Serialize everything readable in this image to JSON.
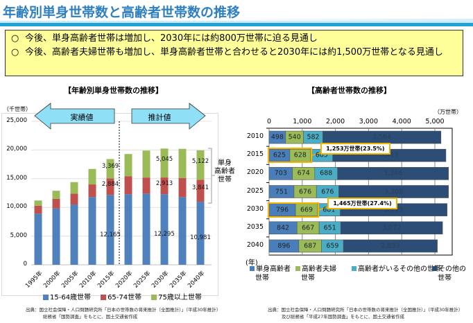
{
  "page": {
    "title": "年齢別単身世帯数と高齢者世帯数の推移",
    "summary": [
      {
        "bullet": "○",
        "text": "今後、単身高齢者世帯は増加し、2030年には約800万世帯に迫る見通し"
      },
      {
        "bullet": "○",
        "text": "今後、高齢者夫婦世帯も増加し、単身高齢者世帯と合わせると2030年には約1,500万世帯となる見通し"
      }
    ],
    "colors": {
      "title": "#2e7fbf",
      "summary_bg": "#ffff99",
      "arrow_fill": "#8fdff7",
      "highlight": "#f2b400"
    }
  },
  "chart_data": [
    {
      "type": "bar",
      "stacked": true,
      "title": "【年齢別単身世帯数の推移】",
      "ylabel": "（千世帯）",
      "xlabel": "",
      "ylim": [
        0,
        25000
      ],
      "yticks": [
        "0",
        "5,000",
        "10,000",
        "15,000",
        "20,000",
        "25,000"
      ],
      "ytick_values": [
        0,
        5000,
        10000,
        15000,
        20000,
        25000
      ],
      "grid": true,
      "categories": [
        "1995年",
        "2000年",
        "2005年",
        "2010年",
        "2015年",
        "2020年",
        "2025年",
        "2030年",
        "2035年",
        "2040年"
      ],
      "series": [
        {
          "name": "15-64歳世帯",
          "color": "#4f81bd",
          "values": [
            8900,
            9800,
            10500,
            11800,
            12165,
            12300,
            12400,
            12295,
            11800,
            10981
          ]
        },
        {
          "name": "65-74世帯",
          "color": "#c0504d",
          "values": [
            1400,
            1700,
            1900,
            2200,
            2884,
            3100,
            2800,
            2913,
            3300,
            3841
          ]
        },
        {
          "name": "75歳以上世帯",
          "color": "#9bbb59",
          "values": [
            900,
            1400,
            2000,
            2700,
            3369,
            3900,
            4700,
            5045,
            5100,
            5122
          ]
        }
      ],
      "data_labels": [
        {
          "category": "2015年",
          "series": 0,
          "text": "12,165"
        },
        {
          "category": "2015年",
          "series": 1,
          "text": "2,884"
        },
        {
          "category": "2015年",
          "series": 2,
          "text": "3,369"
        },
        {
          "category": "2030年",
          "series": 0,
          "text": "12,295"
        },
        {
          "category": "2030年",
          "series": 1,
          "text": "2,913"
        },
        {
          "category": "2030年",
          "series": 2,
          "text": "5,045"
        },
        {
          "category": "2040年",
          "series": 0,
          "text": "10,981"
        },
        {
          "category": "2040年",
          "series": 1,
          "text": "3,841"
        },
        {
          "category": "2040年",
          "series": 2,
          "text": "5,122"
        }
      ],
      "annotations": {
        "actual_label": "実績値",
        "projection_label": "推計値",
        "divider_between": [
          "2015年",
          "2020年"
        ],
        "bracket_label": [
          "単身",
          "高齢者",
          "世帯"
        ]
      },
      "legend": "bottom",
      "source": [
        "出典：国立社会保障・人口問題研究所「日本の世帯数の将来推計（全国推計）」（平成30年推計）",
        "総務省「国勢調査」をもとに、国土交通省作成"
      ]
    },
    {
      "type": "bar",
      "orientation": "horizontal",
      "stacked": true,
      "title": "【高齢者世帯数の推移】",
      "xlabel": "（万世帯）",
      "ylabel": "(年)",
      "xlim": [
        0,
        5500
      ],
      "xticks": [
        "0",
        "1,000",
        "2,000",
        "3,000",
        "4,000",
        "5,000"
      ],
      "xtick_values": [
        0,
        1000,
        2000,
        3000,
        4000,
        5000
      ],
      "grid": true,
      "categories": [
        "2010",
        "2015",
        "2020",
        "2025",
        "2030",
        "2035",
        "2040"
      ],
      "series": [
        {
          "name": "単身高齢者世帯",
          "color": "#4a7ebb",
          "values": [
            498,
            625,
            703,
            751,
            796,
            842,
            896
          ]
        },
        {
          "name": "高齢者夫婦世帯",
          "color": "#9bbb59",
          "values": [
            540,
            628,
            674,
            676,
            669,
            667,
            687
          ]
        },
        {
          "name": "高齢者がいるその他の世帯",
          "color": "#4bacc6",
          "values": [
            582,
            665,
            688,
            676,
            681,
            651,
            659
          ]
        },
        {
          "name": "その他の世帯",
          "color": "#2c4d75",
          "values": [
            3564,
            3415,
            3346,
            3308,
            3223,
            3072,
            2833
          ]
        }
      ],
      "value_labels": [
        [
          "498",
          "540",
          "582",
          "3,564"
        ],
        [
          "625",
          "628",
          "665",
          "3,415"
        ],
        [
          "703",
          "674",
          "688",
          "3,346"
        ],
        [
          "751",
          "676",
          "676",
          "3,308"
        ],
        [
          "796",
          "669",
          "681",
          "3,223"
        ],
        [
          "842",
          "667",
          "651",
          "3,072"
        ],
        [
          "896",
          "687",
          "659",
          "2,833"
        ]
      ],
      "callouts": [
        {
          "category": "2015",
          "text": "1,253万世帯(23.5%)"
        },
        {
          "category": "2030",
          "text": "1,465万世帯(27.4%)"
        }
      ],
      "legend": "bottom",
      "legend_labels": [
        [
          "単身高齢者",
          "世帯"
        ],
        [
          "高齢者夫婦",
          "世帯"
        ],
        [
          "高齢者がいるその他の世帯",
          ""
        ],
        [
          "その他の",
          "世帯"
        ]
      ],
      "source": [
        "出典：国立社会保障・人口問題研究所「日本の世帯数の将来推計（全国推計）」（平成30年推計）",
        "及び総務省「平成27年国勢調査」をもとに、国土交通省作成"
      ]
    }
  ]
}
